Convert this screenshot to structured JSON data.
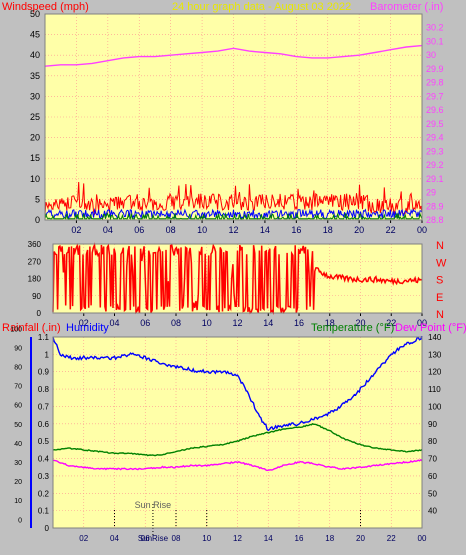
{
  "header": {
    "title": "24 hour graph data - August 03 2022",
    "left_label": "Windspeed (mph)",
    "right_label": "Barometer (.in)"
  },
  "hour_ticks": [
    "02",
    "04",
    "06",
    "08",
    "10",
    "12",
    "14",
    "16",
    "18",
    "20",
    "22",
    "00"
  ],
  "colors": {
    "panel_bg": "#ffffa8",
    "outer_bg": "#c0c0c0",
    "windspeed": "#ff0000",
    "gust": "#ff0000",
    "wind_avg": "#0000ff",
    "wind_green": "#008000",
    "barometer": "#ff40ff",
    "temperature": "#008000",
    "dewpoint": "#ff00ff",
    "humidity": "#0000ff",
    "rain": "#ff0000",
    "grid": "#ff9090",
    "label_red": "#ff0000",
    "label_yellow": "#e8e800"
  },
  "chart_data": [
    {
      "type": "line",
      "name": "wind-barometer",
      "title": "24 hour graph data - August 03 2022",
      "ylabel_left": "Windspeed (mph)",
      "ylabel_right": "Barometer (.in)",
      "ylim_left": [
        0,
        50
      ],
      "ylim_right": [
        28.8,
        30.3
      ],
      "y_ticks_left": [
        "0",
        "5",
        "10",
        "15",
        "20",
        "25",
        "30",
        "35",
        "40",
        "45",
        "50"
      ],
      "y_ticks_right": [
        "28.8",
        "28.9",
        "29",
        "29.1",
        "29.2",
        "29.3",
        "29.4",
        "29.5",
        "29.6",
        "29.7",
        "29.8",
        "29.9",
        "30",
        "30.1",
        "30.2"
      ],
      "x_ticks": [
        "02",
        "04",
        "06",
        "08",
        "10",
        "12",
        "14",
        "16",
        "18",
        "20",
        "22",
        "00"
      ],
      "grid": true,
      "series": [
        {
          "axis": "right",
          "x": [
            0,
            1,
            2,
            3,
            4,
            5,
            6,
            7,
            8,
            9,
            10,
            11,
            12,
            13,
            14,
            15,
            16,
            17,
            18,
            19,
            20,
            21,
            22,
            23,
            24
          ],
          "values": [
            29.92,
            29.93,
            29.93,
            29.94,
            29.96,
            29.98,
            29.99,
            29.99,
            30.0,
            30.01,
            30.02,
            30.03,
            30.05,
            30.03,
            30.02,
            30.01,
            29.99,
            29.98,
            29.98,
            29.99,
            30.0,
            30.02,
            30.04,
            30.06,
            30.07
          ]
        },
        {
          "axis": "left",
          "x": [
            0,
            1,
            2,
            3,
            4,
            5,
            6,
            7,
            8,
            9,
            10,
            11,
            12,
            13,
            14,
            15,
            16,
            17,
            18,
            19,
            20,
            21,
            22,
            23,
            24
          ],
          "values": [
            3,
            3,
            4,
            3,
            3,
            4,
            4,
            3,
            4,
            4,
            4,
            4,
            4,
            4,
            4,
            4,
            4,
            4,
            4,
            4,
            4,
            3,
            3,
            3,
            3
          ]
        },
        {
          "axis": "left",
          "x": [
            0,
            1,
            2,
            3,
            4,
            5,
            6,
            7,
            8,
            9,
            10,
            11,
            12,
            13,
            14,
            15,
            16,
            17,
            18,
            19,
            20,
            21,
            22,
            23,
            24
          ],
          "values": [
            1,
            1,
            1,
            1,
            1,
            1,
            1,
            1,
            1,
            1,
            1,
            1,
            1,
            1,
            1,
            1,
            1,
            1,
            1,
            1,
            1,
            1,
            1,
            1,
            1
          ]
        }
      ]
    },
    {
      "type": "line",
      "name": "wind-direction",
      "ylim": [
        0,
        360
      ],
      "y_ticks": [
        "0",
        "90",
        "180",
        "270",
        "360"
      ],
      "compass": [
        "N",
        "W",
        "S",
        "E",
        "N"
      ],
      "x_ticks": [
        "02",
        "04",
        "06",
        "08",
        "10",
        "12",
        "14",
        "16",
        "18",
        "20",
        "22",
        "00"
      ],
      "grid": true,
      "series": [
        {
          "x": [
            0,
            1.5,
            3,
            4.5,
            6,
            7.5,
            9,
            10.5,
            12,
            13.5,
            15,
            16.5,
            17,
            18,
            19,
            20,
            21,
            22,
            23,
            24
          ],
          "values": [
            180,
            90,
            45,
            320,
            60,
            300,
            100,
            340,
            40,
            330,
            70,
            300,
            230,
            190,
            180,
            175,
            175,
            165,
            170,
            170
          ]
        }
      ]
    },
    {
      "type": "line",
      "name": "rain-humidity-temp",
      "ylabel_left": "Rainfall (.in)",
      "ylabel_left2": "Humidity",
      "ylabel_right": "Temperature (°F)",
      "ylabel_right2": "Dew Point (°F)",
      "ylim_left": [
        0,
        1.1
      ],
      "ylim_right": [
        30,
        140
      ],
      "y_ticks_left": [
        "0",
        "0.1",
        "0.2",
        "0.3",
        "0.4",
        "0.5",
        "0.6",
        "0.7",
        "0.8",
        "0.9",
        "1",
        "1.1"
      ],
      "y_ticks_outer": [
        "0",
        "10",
        "20",
        "30",
        "40",
        "50",
        "60",
        "70",
        "80",
        "90",
        "100"
      ],
      "y_ticks_right": [
        "40",
        "50",
        "60",
        "70",
        "80",
        "90",
        "100",
        "110",
        "120",
        "130",
        "140"
      ],
      "x_ticks": [
        "02",
        "04",
        "06",
        "08",
        "10",
        "12",
        "14",
        "16",
        "18",
        "20",
        "22",
        "00"
      ],
      "annotation": "Sun Rise",
      "x_events": [
        "04",
        "08",
        "10",
        "20"
      ],
      "event_labels": [
        "SunRise"
      ],
      "grid": true,
      "series": [
        {
          "name": "Humidity",
          "axis": "left",
          "x": [
            0,
            0.5,
            1,
            2,
            3,
            4,
            5,
            6,
            7,
            8,
            9,
            10,
            11,
            12,
            13,
            13.5,
            14,
            15,
            16,
            17,
            18,
            19,
            20,
            21,
            22,
            23,
            24
          ],
          "values": [
            1.1,
            1.0,
            0.98,
            0.98,
            0.98,
            0.98,
            1.0,
            0.98,
            0.95,
            0.93,
            0.91,
            0.9,
            0.9,
            0.88,
            0.72,
            0.63,
            0.57,
            0.59,
            0.6,
            0.63,
            0.66,
            0.72,
            0.8,
            0.9,
            1.0,
            1.06,
            1.1
          ]
        },
        {
          "name": "Temperature (°F)",
          "axis": "right",
          "x": [
            0,
            1,
            2,
            3,
            4,
            5,
            6,
            7,
            8,
            9,
            10,
            11,
            12,
            13,
            14,
            15,
            16,
            17,
            18,
            19,
            20,
            21,
            22,
            23,
            24
          ],
          "values": [
            75,
            76,
            75,
            74,
            73,
            73,
            72,
            72,
            74,
            76,
            77,
            78,
            80,
            83,
            85,
            87,
            88,
            90,
            86,
            81,
            78,
            76,
            75,
            74,
            75
          ]
        },
        {
          "name": "Dew Point (°F)",
          "axis": "right",
          "x": [
            0,
            1,
            2,
            3,
            4,
            5,
            6,
            7,
            8,
            9,
            10,
            11,
            12,
            13,
            14,
            15,
            16,
            17,
            18,
            19,
            20,
            21,
            22,
            23,
            24
          ],
          "values": [
            69,
            66,
            65,
            64,
            64,
            64,
            64,
            65,
            65,
            66,
            66,
            67,
            68,
            66,
            63,
            66,
            68,
            67,
            65,
            64,
            65,
            66,
            67,
            68,
            69
          ]
        }
      ]
    }
  ]
}
